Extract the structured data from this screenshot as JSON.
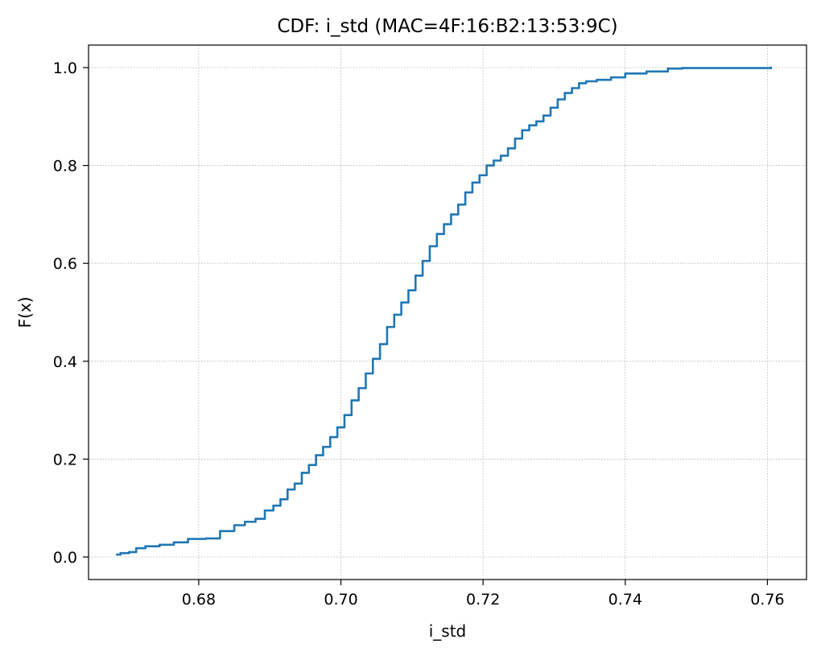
{
  "chart_data": {
    "type": "line",
    "title": "CDF: i_std (MAC=4F:16:B2:13:53:9C)",
    "xlabel": "i_std",
    "ylabel": "F(x)",
    "xlim": [
      0.6645,
      0.7655
    ],
    "ylim": [
      -0.046,
      1.046
    ],
    "xticks": [
      0.68,
      0.7,
      0.72,
      0.74,
      0.76
    ],
    "xtick_labels": [
      "0.68",
      "0.70",
      "0.72",
      "0.74",
      "0.76"
    ],
    "yticks": [
      0.0,
      0.2,
      0.4,
      0.6,
      0.8,
      1.0
    ],
    "ytick_labels": [
      "0.0",
      "0.2",
      "0.4",
      "0.6",
      "0.8",
      "1.0"
    ],
    "grid": true,
    "series_color": "#1f77b4",
    "series": [
      {
        "x": [
          0.6685,
          0.669,
          0.6702,
          0.6712,
          0.6725,
          0.6745,
          0.6765,
          0.6785,
          0.681,
          0.683,
          0.685,
          0.6865,
          0.688,
          0.6893,
          0.6905,
          0.6915,
          0.6925,
          0.6935,
          0.6945,
          0.6955,
          0.6965,
          0.6975,
          0.6985,
          0.6995,
          0.7005,
          0.7015,
          0.7025,
          0.7035,
          0.7045,
          0.7055,
          0.7065,
          0.7075,
          0.7085,
          0.7095,
          0.7105,
          0.7115,
          0.7125,
          0.7135,
          0.7145,
          0.7155,
          0.7165,
          0.7175,
          0.7185,
          0.7195,
          0.7205,
          0.7215,
          0.7225,
          0.7235,
          0.7245,
          0.7255,
          0.7265,
          0.7275,
          0.7285,
          0.7295,
          0.7305,
          0.7315,
          0.7325,
          0.7335,
          0.7345,
          0.736,
          0.738,
          0.74,
          0.743,
          0.746,
          0.748,
          0.7605
        ],
        "y": [
          0.005,
          0.008,
          0.01,
          0.018,
          0.022,
          0.025,
          0.03,
          0.037,
          0.038,
          0.053,
          0.065,
          0.072,
          0.078,
          0.095,
          0.105,
          0.118,
          0.138,
          0.15,
          0.172,
          0.188,
          0.208,
          0.225,
          0.245,
          0.265,
          0.29,
          0.32,
          0.345,
          0.375,
          0.405,
          0.435,
          0.47,
          0.495,
          0.52,
          0.545,
          0.575,
          0.605,
          0.635,
          0.66,
          0.68,
          0.7,
          0.72,
          0.745,
          0.765,
          0.78,
          0.8,
          0.81,
          0.82,
          0.835,
          0.855,
          0.872,
          0.882,
          0.89,
          0.902,
          0.918,
          0.935,
          0.948,
          0.958,
          0.968,
          0.972,
          0.975,
          0.98,
          0.988,
          0.992,
          0.998,
          0.999,
          1.0
        ]
      }
    ]
  }
}
